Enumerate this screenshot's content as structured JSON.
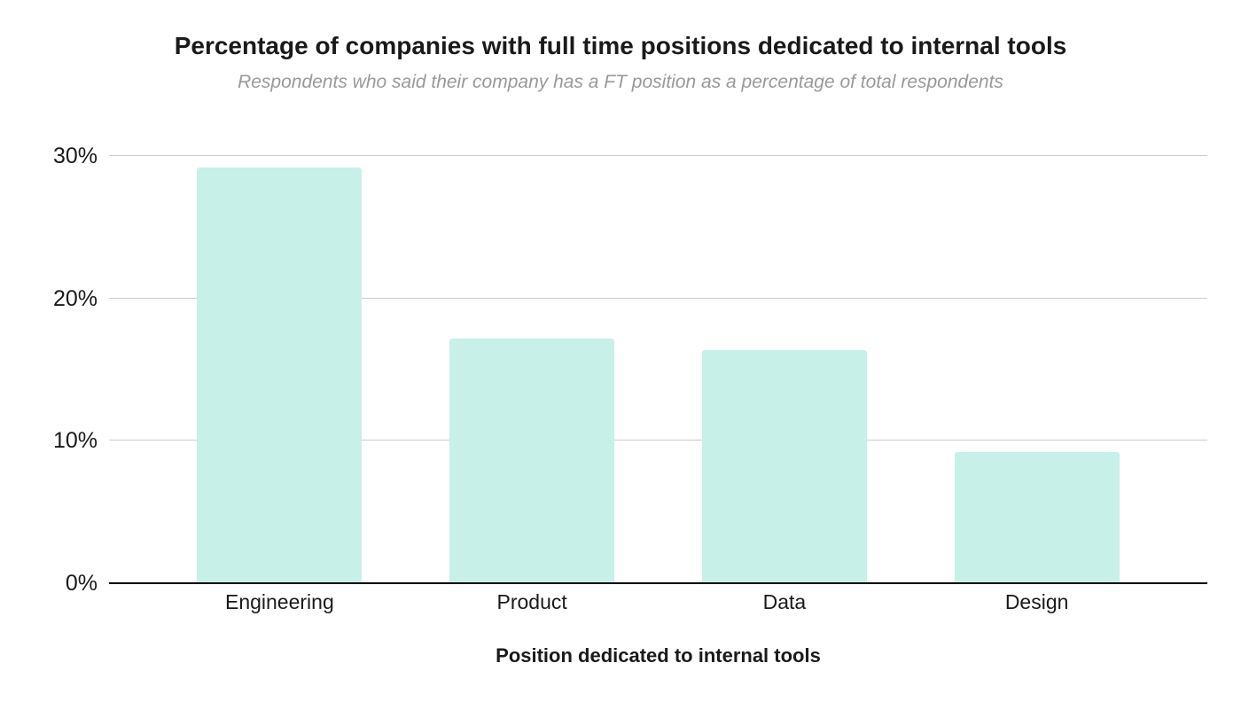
{
  "chart_data": {
    "type": "bar",
    "title": "Percentage of companies with full time positions dedicated to internal tools",
    "subtitle": "Respondents who said their company has a FT position as a percentage of total respondents",
    "xlabel": "Position dedicated to internal tools",
    "ylabel": "",
    "categories": [
      "Engineering",
      "Product",
      "Data",
      "Design"
    ],
    "values": [
      29.2,
      17.2,
      16.4,
      9.2
    ],
    "ylim": [
      0,
      30
    ],
    "yticks": [
      0,
      10,
      20,
      30
    ],
    "ytick_labels": [
      "0%",
      "10%",
      "20%",
      "30%"
    ],
    "grid": true,
    "legend": false,
    "colors": {
      "bar": "#c7f0e9",
      "gridline": "#cccccc",
      "axis": "#000000",
      "title": "#1a1a1a",
      "subtitle": "#999999",
      "label": "#1a1a1a"
    }
  }
}
